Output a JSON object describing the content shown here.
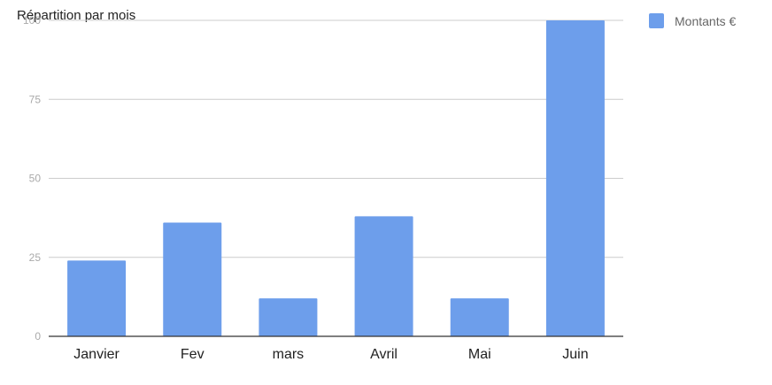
{
  "chart_data": {
    "type": "bar",
    "title": "Répartition par mois",
    "categories": [
      "Janvier",
      "Fev",
      "mars",
      "Avril",
      "Mai",
      "Juin"
    ],
    "series": [
      {
        "name": "Montants €",
        "values": [
          24,
          36,
          12,
          38,
          12,
          100
        ]
      }
    ],
    "ylim": [
      0,
      100
    ],
    "yticks": [
      "0",
      "25",
      "50",
      "75",
      "100"
    ],
    "grid": true,
    "legend_position": "top-right",
    "colors": {
      "bar": "#6d9eeb",
      "grid": "#cccccc",
      "axis": "#333333"
    }
  }
}
